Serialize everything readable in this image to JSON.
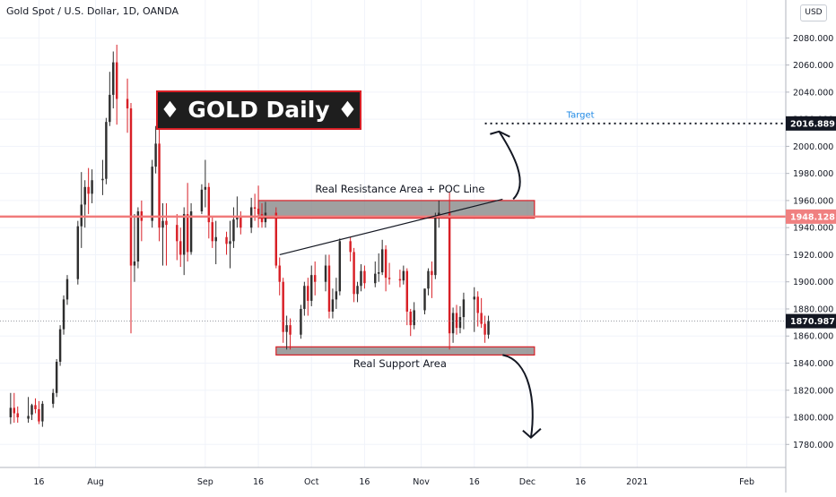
{
  "header": {
    "title": "Gold Spot / U.S. Dollar, 1D, OANDA",
    "currency": "USD"
  },
  "banner": {
    "text": "♦ GOLD Daily ♦"
  },
  "colors": {
    "up": "#2e2e2e",
    "down": "#d81f26",
    "price_line": "#f07a7a",
    "price_label_bg": "#f08080",
    "target_text": "#1e88e5",
    "zone_fill": "#808080",
    "zone_border": "#d81f26"
  },
  "chart_data": {
    "type": "candlestick",
    "title": "Gold Spot / U.S. Dollar, 1D, OANDA",
    "x_ticks": [
      {
        "label": "16",
        "date": "2020-07-16"
      },
      {
        "label": "Aug",
        "date": "2020-08-01"
      },
      {
        "label": "Sep",
        "date": "2020-09-01"
      },
      {
        "label": "16",
        "date": "2020-09-16"
      },
      {
        "label": "Oct",
        "date": "2020-10-01"
      },
      {
        "label": "16",
        "date": "2020-10-16"
      },
      {
        "label": "Nov",
        "date": "2020-11-01"
      },
      {
        "label": "16",
        "date": "2020-11-16"
      },
      {
        "label": "Dec",
        "date": "2020-12-01"
      },
      {
        "label": "16",
        "date": "2020-12-16"
      },
      {
        "label": "2021",
        "date": "2021-01-01"
      },
      {
        "label": "Feb",
        "date": "2021-02-01"
      }
    ],
    "y_ticks": [
      1780,
      1800,
      1820,
      1840,
      1860,
      1880,
      1900,
      1920,
      1940,
      1960,
      1980,
      2000,
      2020,
      2040,
      2060,
      2080
    ],
    "y_tick_labels": [
      "1780.000",
      "1800.000",
      "1820.000",
      "1840.000",
      "1860.000",
      "1880.000",
      "1900.000",
      "1920.000",
      "1940.000",
      "1960.000",
      "1980.000",
      "2000.000",
      "2020.000",
      "2040.000",
      "2060.000",
      "2080.000"
    ],
    "ylim": [
      1763,
      2108
    ],
    "xlim": [
      "2020-07-05",
      "2021-02-12"
    ],
    "candles": [
      {
        "d": "2020-07-08",
        "o": 1800,
        "h": 1818,
        "l": 1795,
        "c": 1807
      },
      {
        "d": "2020-07-09",
        "o": 1807,
        "h": 1818,
        "l": 1796,
        "c": 1803
      },
      {
        "d": "2020-07-10",
        "o": 1803,
        "h": 1808,
        "l": 1796,
        "c": 1800
      },
      {
        "d": "2020-07-13",
        "o": 1799,
        "h": 1815,
        "l": 1796,
        "c": 1801
      },
      {
        "d": "2020-07-14",
        "o": 1802,
        "h": 1810,
        "l": 1798,
        "c": 1809
      },
      {
        "d": "2020-07-15",
        "o": 1809,
        "h": 1814,
        "l": 1803,
        "c": 1806
      },
      {
        "d": "2020-07-16",
        "o": 1806,
        "h": 1812,
        "l": 1795,
        "c": 1797
      },
      {
        "d": "2020-07-17",
        "o": 1797,
        "h": 1812,
        "l": 1793,
        "c": 1810
      },
      {
        "d": "2020-07-20",
        "o": 1810,
        "h": 1821,
        "l": 1807,
        "c": 1818
      },
      {
        "d": "2020-07-21",
        "o": 1818,
        "h": 1843,
        "l": 1815,
        "c": 1841
      },
      {
        "d": "2020-07-22",
        "o": 1841,
        "h": 1868,
        "l": 1838,
        "c": 1865
      },
      {
        "d": "2020-07-23",
        "o": 1865,
        "h": 1890,
        "l": 1861,
        "c": 1887
      },
      {
        "d": "2020-07-24",
        "o": 1887,
        "h": 1905,
        "l": 1883,
        "c": 1902
      },
      {
        "d": "2020-07-27",
        "o": 1902,
        "h": 1945,
        "l": 1898,
        "c": 1941
      },
      {
        "d": "2020-07-28",
        "o": 1941,
        "h": 1981,
        "l": 1925,
        "c": 1957
      },
      {
        "d": "2020-07-29",
        "o": 1957,
        "h": 1975,
        "l": 1940,
        "c": 1970
      },
      {
        "d": "2020-07-30",
        "o": 1970,
        "h": 1984,
        "l": 1950,
        "c": 1965
      },
      {
        "d": "2020-07-31",
        "o": 1965,
        "h": 1983,
        "l": 1958,
        "c": 1975
      },
      {
        "d": "2020-08-03",
        "o": 1975,
        "h": 1990,
        "l": 1964,
        "c": 1976
      },
      {
        "d": "2020-08-04",
        "o": 1976,
        "h": 2021,
        "l": 1972,
        "c": 2018
      },
      {
        "d": "2020-08-05",
        "o": 2018,
        "h": 2055,
        "l": 2015,
        "c": 2038
      },
      {
        "d": "2020-08-06",
        "o": 2038,
        "h": 2070,
        "l": 2028,
        "c": 2062
      },
      {
        "d": "2020-08-07",
        "o": 2062,
        "h": 2075,
        "l": 2016,
        "c": 2035
      },
      {
        "d": "2020-08-10",
        "o": 2035,
        "h": 2050,
        "l": 2010,
        "c": 2028
      },
      {
        "d": "2020-08-11",
        "o": 2028,
        "h": 2032,
        "l": 1862,
        "c": 1912
      },
      {
        "d": "2020-08-12",
        "o": 1912,
        "h": 1950,
        "l": 1900,
        "c": 1915
      },
      {
        "d": "2020-08-13",
        "o": 1915,
        "h": 1955,
        "l": 1910,
        "c": 1952
      },
      {
        "d": "2020-08-14",
        "o": 1952,
        "h": 1960,
        "l": 1930,
        "c": 1945
      },
      {
        "d": "2020-08-17",
        "o": 1945,
        "h": 1990,
        "l": 1940,
        "c": 1985
      },
      {
        "d": "2020-08-18",
        "o": 1985,
        "h": 2015,
        "l": 1980,
        "c": 2002
      },
      {
        "d": "2020-08-19",
        "o": 2002,
        "h": 2015,
        "l": 1930,
        "c": 1940
      },
      {
        "d": "2020-08-20",
        "o": 1940,
        "h": 1958,
        "l": 1912,
        "c": 1945
      },
      {
        "d": "2020-08-21",
        "o": 1945,
        "h": 1958,
        "l": 1912,
        "c": 1942
      },
      {
        "d": "2020-08-24",
        "o": 1942,
        "h": 1950,
        "l": 1916,
        "c": 1930
      },
      {
        "d": "2020-08-25",
        "o": 1930,
        "h": 1940,
        "l": 1911,
        "c": 1920
      },
      {
        "d": "2020-08-26",
        "o": 1920,
        "h": 1955,
        "l": 1905,
        "c": 1950
      },
      {
        "d": "2020-08-27",
        "o": 1950,
        "h": 1973,
        "l": 1915,
        "c": 1922
      },
      {
        "d": "2020-08-28",
        "o": 1922,
        "h": 1958,
        "l": 1920,
        "c": 1952
      },
      {
        "d": "2020-08-31",
        "o": 1952,
        "h": 1972,
        "l": 1950,
        "c": 1968
      },
      {
        "d": "2020-09-01",
        "o": 1968,
        "h": 1990,
        "l": 1955,
        "c": 1970
      },
      {
        "d": "2020-09-02",
        "o": 1970,
        "h": 1973,
        "l": 1932,
        "c": 1944
      },
      {
        "d": "2020-09-03",
        "o": 1944,
        "h": 1948,
        "l": 1925,
        "c": 1930
      },
      {
        "d": "2020-09-04",
        "o": 1930,
        "h": 1945,
        "l": 1913,
        "c": 1933
      },
      {
        "d": "2020-09-07",
        "o": 1933,
        "h": 1937,
        "l": 1920,
        "c": 1928
      },
      {
        "d": "2020-09-08",
        "o": 1928,
        "h": 1945,
        "l": 1910,
        "c": 1930
      },
      {
        "d": "2020-09-09",
        "o": 1930,
        "h": 1955,
        "l": 1925,
        "c": 1946
      },
      {
        "d": "2020-09-10",
        "o": 1946,
        "h": 1963,
        "l": 1940,
        "c": 1948
      },
      {
        "d": "2020-09-11",
        "o": 1948,
        "h": 1952,
        "l": 1935,
        "c": 1940
      },
      {
        "d": "2020-09-14",
        "o": 1940,
        "h": 1962,
        "l": 1936,
        "c": 1955
      },
      {
        "d": "2020-09-15",
        "o": 1955,
        "h": 1965,
        "l": 1945,
        "c": 1954
      },
      {
        "d": "2020-09-16",
        "o": 1954,
        "h": 1971,
        "l": 1940,
        "c": 1950
      },
      {
        "d": "2020-09-17",
        "o": 1950,
        "h": 1958,
        "l": 1940,
        "c": 1944
      },
      {
        "d": "2020-09-18",
        "o": 1944,
        "h": 1959,
        "l": 1940,
        "c": 1951
      },
      {
        "d": "2020-09-21",
        "o": 1951,
        "h": 1955,
        "l": 1910,
        "c": 1912
      },
      {
        "d": "2020-09-22",
        "o": 1912,
        "h": 1918,
        "l": 1890,
        "c": 1900
      },
      {
        "d": "2020-09-23",
        "o": 1900,
        "h": 1903,
        "l": 1855,
        "c": 1863
      },
      {
        "d": "2020-09-24",
        "o": 1863,
        "h": 1875,
        "l": 1850,
        "c": 1868
      },
      {
        "d": "2020-09-25",
        "o": 1868,
        "h": 1873,
        "l": 1850,
        "c": 1861
      },
      {
        "d": "2020-09-28",
        "o": 1861,
        "h": 1883,
        "l": 1858,
        "c": 1880
      },
      {
        "d": "2020-09-29",
        "o": 1880,
        "h": 1900,
        "l": 1875,
        "c": 1897
      },
      {
        "d": "2020-09-30",
        "o": 1897,
        "h": 1903,
        "l": 1875,
        "c": 1886
      },
      {
        "d": "2020-10-01",
        "o": 1886,
        "h": 1912,
        "l": 1882,
        "c": 1905
      },
      {
        "d": "2020-10-02",
        "o": 1905,
        "h": 1915,
        "l": 1890,
        "c": 1900
      },
      {
        "d": "2020-10-05",
        "o": 1900,
        "h": 1920,
        "l": 1893,
        "c": 1912
      },
      {
        "d": "2020-10-06",
        "o": 1912,
        "h": 1920,
        "l": 1873,
        "c": 1878
      },
      {
        "d": "2020-10-07",
        "o": 1878,
        "h": 1895,
        "l": 1873,
        "c": 1887
      },
      {
        "d": "2020-10-08",
        "o": 1887,
        "h": 1903,
        "l": 1880,
        "c": 1893
      },
      {
        "d": "2020-10-09",
        "o": 1893,
        "h": 1932,
        "l": 1890,
        "c": 1930
      },
      {
        "d": "2020-10-12",
        "o": 1930,
        "h": 1933,
        "l": 1915,
        "c": 1922
      },
      {
        "d": "2020-10-13",
        "o": 1922,
        "h": 1925,
        "l": 1885,
        "c": 1891
      },
      {
        "d": "2020-10-14",
        "o": 1891,
        "h": 1900,
        "l": 1885,
        "c": 1897
      },
      {
        "d": "2020-10-15",
        "o": 1897,
        "h": 1913,
        "l": 1893,
        "c": 1908
      },
      {
        "d": "2020-10-16",
        "o": 1908,
        "h": 1912,
        "l": 1895,
        "c": 1899
      },
      {
        "d": "2020-10-19",
        "o": 1899,
        "h": 1915,
        "l": 1896,
        "c": 1906
      },
      {
        "d": "2020-10-20",
        "o": 1906,
        "h": 1921,
        "l": 1900,
        "c": 1907
      },
      {
        "d": "2020-10-21",
        "o": 1907,
        "h": 1931,
        "l": 1905,
        "c": 1924
      },
      {
        "d": "2020-10-22",
        "o": 1924,
        "h": 1927,
        "l": 1893,
        "c": 1903
      },
      {
        "d": "2020-10-23",
        "o": 1903,
        "h": 1914,
        "l": 1898,
        "c": 1902
      },
      {
        "d": "2020-10-26",
        "o": 1902,
        "h": 1909,
        "l": 1896,
        "c": 1901
      },
      {
        "d": "2020-10-27",
        "o": 1901,
        "h": 1912,
        "l": 1898,
        "c": 1908
      },
      {
        "d": "2020-10-28",
        "o": 1908,
        "h": 1910,
        "l": 1868,
        "c": 1878
      },
      {
        "d": "2020-10-29",
        "o": 1878,
        "h": 1880,
        "l": 1860,
        "c": 1868
      },
      {
        "d": "2020-10-30",
        "o": 1868,
        "h": 1885,
        "l": 1865,
        "c": 1879
      },
      {
        "d": "2020-11-02",
        "o": 1879,
        "h": 1895,
        "l": 1876,
        "c": 1895
      },
      {
        "d": "2020-11-03",
        "o": 1895,
        "h": 1910,
        "l": 1890,
        "c": 1908
      },
      {
        "d": "2020-11-04",
        "o": 1908,
        "h": 1915,
        "l": 1888,
        "c": 1905
      },
      {
        "d": "2020-11-05",
        "o": 1905,
        "h": 1951,
        "l": 1902,
        "c": 1948
      },
      {
        "d": "2020-11-06",
        "o": 1948,
        "h": 1960,
        "l": 1940,
        "c": 1951
      },
      {
        "d": "2020-11-09",
        "o": 1951,
        "h": 1966,
        "l": 1850,
        "c": 1862
      },
      {
        "d": "2020-11-10",
        "o": 1862,
        "h": 1881,
        "l": 1855,
        "c": 1877
      },
      {
        "d": "2020-11-11",
        "o": 1877,
        "h": 1883,
        "l": 1861,
        "c": 1866
      },
      {
        "d": "2020-11-12",
        "o": 1866,
        "h": 1882,
        "l": 1862,
        "c": 1874
      },
      {
        "d": "2020-11-13",
        "o": 1874,
        "h": 1892,
        "l": 1865,
        "c": 1887
      },
      {
        "d": "2020-11-16",
        "o": 1887,
        "h": 1896,
        "l": 1863,
        "c": 1889
      },
      {
        "d": "2020-11-17",
        "o": 1889,
        "h": 1893,
        "l": 1867,
        "c": 1877
      },
      {
        "d": "2020-11-18",
        "o": 1877,
        "h": 1888,
        "l": 1866,
        "c": 1869
      },
      {
        "d": "2020-11-19",
        "o": 1869,
        "h": 1875,
        "l": 1855,
        "c": 1861
      },
      {
        "d": "2020-11-20",
        "o": 1861,
        "h": 1875,
        "l": 1858,
        "c": 1871
      }
    ],
    "annotations": [
      {
        "type": "label",
        "text": "Target",
        "price": 2021,
        "date": "2020-12-16"
      },
      {
        "type": "label",
        "text": "Real Resistance Area + POC Line",
        "price": 1966,
        "date": "2020-10-26"
      },
      {
        "type": "label",
        "text": "Real Support Area",
        "price": 1837,
        "date": "2020-10-26"
      },
      {
        "type": "zone",
        "name": "Real Resistance Area",
        "from": "2020-09-16",
        "to": "2020-12-03",
        "low": 1947,
        "high": 1960
      },
      {
        "type": "zone",
        "name": "Real Support Area",
        "from": "2020-09-21",
        "to": "2020-12-03",
        "low": 1846,
        "high": 1852
      },
      {
        "type": "hline",
        "name": "resistance",
        "price": 1948.128
      },
      {
        "type": "dotted",
        "name": "target",
        "price": 2016.889,
        "from": "2020-11-19"
      },
      {
        "type": "trendline",
        "from_date": "2020-09-22",
        "from_price": 1920,
        "to_date": "2020-11-24",
        "to_price": 1961
      },
      {
        "type": "arrow",
        "direction": "up",
        "from_date": "2020-11-27",
        "from_price": 1961,
        "to_date": "2020-11-23",
        "to_price": 2011
      },
      {
        "type": "arrow",
        "direction": "down",
        "from_date": "2020-11-24",
        "from_price": 1846,
        "to_date": "2020-12-02",
        "to_price": 1785
      }
    ],
    "price_labels": [
      {
        "text": "2016.889",
        "price": 2016.889,
        "style": "dark"
      },
      {
        "text": "1948.128",
        "price": 1948.128,
        "style": "red"
      },
      {
        "text": "1870.987",
        "price": 1870.987,
        "style": "dark"
      }
    ],
    "last_price": 1870.987
  }
}
